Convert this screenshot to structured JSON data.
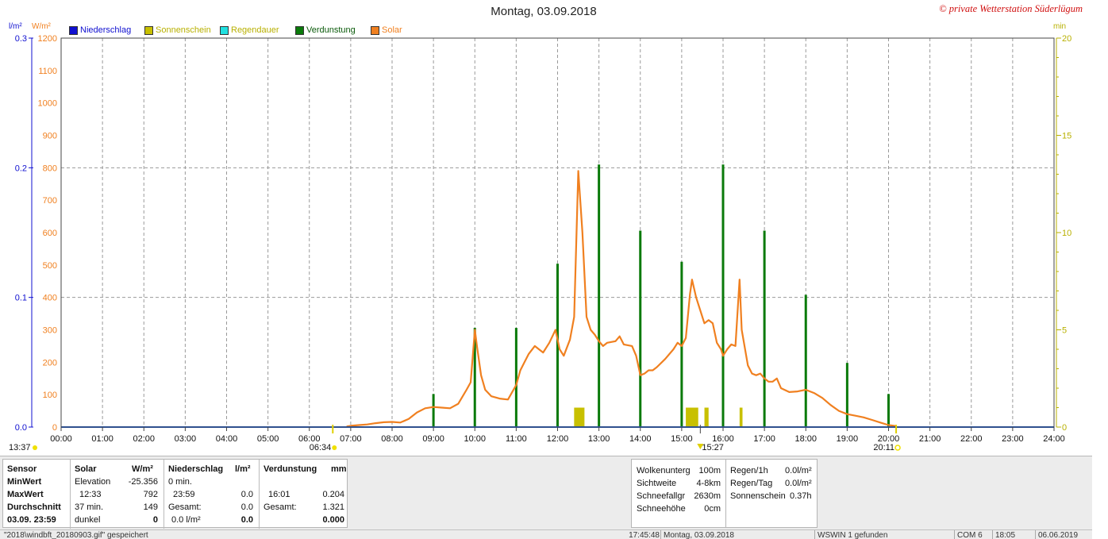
{
  "header": {
    "title": "Montag, 03.09.2018",
    "copyright": "© private Wetterstation Süderlügum",
    "unit_left_blue": "l/m²",
    "unit_left_orange": "W/m²",
    "unit_right": "min"
  },
  "legend": [
    {
      "label": "Niederschlag",
      "color": "#1010d0",
      "text_color": "#1010d0"
    },
    {
      "label": "Sonnenschein",
      "color": "#c8c000",
      "text_color": "#b8b000"
    },
    {
      "label": "Regendauer",
      "color": "#20e0e0",
      "text_color": "#b8b000"
    },
    {
      "label": "Verdunstung",
      "color": "#0a7a0a",
      "text_color": "#0a5a0a"
    },
    {
      "label": "Solar",
      "color": "#f08020",
      "text_color": "#f08020"
    }
  ],
  "chart_data": {
    "type": "line",
    "title": "Montag, 03.09.2018",
    "x_ticks": [
      "00:00",
      "01:00",
      "02:00",
      "03:00",
      "04:00",
      "05:00",
      "06:00",
      "07:00",
      "08:00",
      "09:00",
      "10:00",
      "11:00",
      "12:00",
      "13:00",
      "14:00",
      "15:00",
      "16:00",
      "17:00",
      "18:00",
      "19:00",
      "20:00",
      "21:00",
      "22:00",
      "23:00",
      "24:00"
    ],
    "x_range_hours": [
      0,
      24
    ],
    "axes": {
      "left_precip": {
        "unit": "l/m²",
        "range": [
          0,
          0.3
        ],
        "ticks": [
          "0.0",
          "0.1",
          "0.2",
          "0.3"
        ],
        "tick_values": [
          0,
          0.1,
          0.2,
          0.3
        ]
      },
      "left_solar": {
        "unit": "W/m²",
        "range": [
          0,
          1200
        ],
        "ticks": [
          "0",
          "100",
          "200",
          "300",
          "400",
          "500",
          "600",
          "700",
          "800",
          "900",
          "1000",
          "1100",
          "1200"
        ],
        "tick_values": [
          0,
          100,
          200,
          300,
          400,
          500,
          600,
          700,
          800,
          900,
          1000,
          1100,
          1200
        ]
      },
      "right_minutes": {
        "unit": "min",
        "range": [
          0,
          20
        ],
        "ticks": [
          "0",
          "5",
          "10",
          "15",
          "20"
        ],
        "tick_values": [
          0,
          5,
          10,
          15,
          20
        ]
      }
    },
    "markers": {
      "moonrise": "13:37",
      "sunrise": "06:34",
      "sun_transit": "15:27",
      "sunset": "20:11"
    },
    "series": [
      {
        "name": "Solar",
        "color": "#f08020",
        "points": [
          [
            6.9,
            2
          ],
          [
            7.0,
            4
          ],
          [
            7.2,
            6
          ],
          [
            7.4,
            8
          ],
          [
            7.6,
            12
          ],
          [
            7.8,
            15
          ],
          [
            8.0,
            16
          ],
          [
            8.2,
            14
          ],
          [
            8.4,
            25
          ],
          [
            8.6,
            45
          ],
          [
            8.8,
            58
          ],
          [
            9.0,
            62
          ],
          [
            9.2,
            60
          ],
          [
            9.4,
            58
          ],
          [
            9.6,
            72
          ],
          [
            9.8,
            115
          ],
          [
            9.9,
            138
          ],
          [
            10.0,
            300
          ],
          [
            10.05,
            250
          ],
          [
            10.15,
            160
          ],
          [
            10.25,
            115
          ],
          [
            10.4,
            95
          ],
          [
            10.6,
            88
          ],
          [
            10.8,
            85
          ],
          [
            11.0,
            130
          ],
          [
            11.1,
            175
          ],
          [
            11.2,
            200
          ],
          [
            11.3,
            225
          ],
          [
            11.45,
            250
          ],
          [
            11.55,
            240
          ],
          [
            11.65,
            230
          ],
          [
            11.8,
            260
          ],
          [
            11.95,
            300
          ],
          [
            12.05,
            240
          ],
          [
            12.15,
            220
          ],
          [
            12.3,
            270
          ],
          [
            12.4,
            340
          ],
          [
            12.5,
            790
          ],
          [
            12.6,
            600
          ],
          [
            12.7,
            340
          ],
          [
            12.8,
            300
          ],
          [
            12.9,
            285
          ],
          [
            13.0,
            265
          ],
          [
            13.1,
            250
          ],
          [
            13.2,
            260
          ],
          [
            13.4,
            265
          ],
          [
            13.5,
            280
          ],
          [
            13.6,
            255
          ],
          [
            13.8,
            250
          ],
          [
            13.9,
            220
          ],
          [
            14.0,
            160
          ],
          [
            14.1,
            165
          ],
          [
            14.2,
            175
          ],
          [
            14.3,
            175
          ],
          [
            14.4,
            185
          ],
          [
            14.6,
            210
          ],
          [
            14.8,
            240
          ],
          [
            14.9,
            260
          ],
          [
            15.0,
            250
          ],
          [
            15.1,
            275
          ],
          [
            15.2,
            410
          ],
          [
            15.25,
            455
          ],
          [
            15.35,
            400
          ],
          [
            15.45,
            360
          ],
          [
            15.55,
            320
          ],
          [
            15.65,
            330
          ],
          [
            15.75,
            320
          ],
          [
            15.85,
            260
          ],
          [
            15.95,
            240
          ],
          [
            16.0,
            220
          ],
          [
            16.1,
            240
          ],
          [
            16.2,
            255
          ],
          [
            16.3,
            250
          ],
          [
            16.4,
            455
          ],
          [
            16.45,
            300
          ],
          [
            16.6,
            190
          ],
          [
            16.7,
            165
          ],
          [
            16.8,
            160
          ],
          [
            16.9,
            165
          ],
          [
            17.0,
            150
          ],
          [
            17.1,
            140
          ],
          [
            17.2,
            140
          ],
          [
            17.3,
            150
          ],
          [
            17.4,
            120
          ],
          [
            17.6,
            108
          ],
          [
            17.8,
            110
          ],
          [
            18.0,
            115
          ],
          [
            18.2,
            105
          ],
          [
            18.4,
            90
          ],
          [
            18.6,
            68
          ],
          [
            18.8,
            50
          ],
          [
            19.0,
            40
          ],
          [
            19.2,
            35
          ],
          [
            19.4,
            30
          ],
          [
            19.6,
            22
          ],
          [
            19.8,
            14
          ],
          [
            20.0,
            6
          ],
          [
            20.2,
            3
          ]
        ]
      },
      {
        "name": "Verdunstung",
        "color": "#0a7a0a",
        "bars_minutes": [
          [
            9.0,
            1.7
          ],
          [
            10.0,
            5.1
          ],
          [
            11.0,
            5.1
          ],
          [
            12.0,
            8.4
          ],
          [
            13.0,
            13.5
          ],
          [
            14.0,
            10.1
          ],
          [
            15.0,
            8.5
          ],
          [
            16.0,
            13.5
          ],
          [
            17.0,
            10.1
          ],
          [
            18.0,
            6.8
          ],
          [
            19.0,
            3.3
          ],
          [
            20.0,
            1.7
          ]
        ]
      },
      {
        "name": "Sonnenschein",
        "color": "#c8c000",
        "segments_minutes": [
          [
            12.4,
            12.65,
            1.0
          ],
          [
            15.1,
            15.4,
            1.0
          ],
          [
            15.55,
            15.65,
            1.0
          ],
          [
            16.4,
            16.47,
            1.0
          ]
        ]
      },
      {
        "name": "Niederschlag",
        "color": "#1010d0",
        "baseline_value": 0.0
      }
    ]
  },
  "stats": {
    "labels": [
      "Sensor",
      "MinWert",
      "MaxWert",
      "Durchschnitt",
      "03.09. 23:59"
    ],
    "solar": {
      "head": "Solar",
      "unit": "W/m²",
      "row1_left": "Elevation",
      "row1_right": "-25.356",
      "row2_left": "12:33",
      "row2_right": "792",
      "row3_left": "37 min.",
      "row3_right": "149",
      "row4_left": "dunkel",
      "row4_right": "0"
    },
    "niederschlag": {
      "head": "Niederschlag",
      "unit": "l/m²",
      "row1_left": "0 min.",
      "row1_right": "",
      "row2_left": "23:59",
      "row2_right": "0.0",
      "row3_left": "Gesamt:",
      "row3_right": "0.0",
      "row4_left": "0.0 l/m²",
      "row4_right": "0.0"
    },
    "verdunstung": {
      "head": "Verdunstung",
      "unit": "mm",
      "row2_left": "16:01",
      "row2_right": "0.204",
      "row3_left": "Gesamt:",
      "row3_right": "1.321",
      "row4_right": "0.000"
    },
    "weather": [
      {
        "label": "Wolkenunterg",
        "value": "100m"
      },
      {
        "label": "Sichtweite",
        "value": "4-8km"
      },
      {
        "label": "Schneefallgr",
        "value": "2630m"
      },
      {
        "label": "Schneehöhe",
        "value": "0cm"
      }
    ],
    "rain": [
      {
        "label": "Regen/1h",
        "value": "0.0l/m²"
      },
      {
        "label": "Regen/Tag",
        "value": "0.0l/m²"
      },
      {
        "label": "Sonnenschein",
        "value": "0.37h"
      }
    ]
  },
  "statusbar": {
    "file": "\"2018\\windbft_20180903.gif\" gespeichert",
    "time": "17:45:48",
    "date": "Montag, 03.09.2018",
    "wswin": "WSWIN 1 gefunden",
    "com": "COM 6",
    "clock": "18:05",
    "today": "06.06.2019"
  }
}
